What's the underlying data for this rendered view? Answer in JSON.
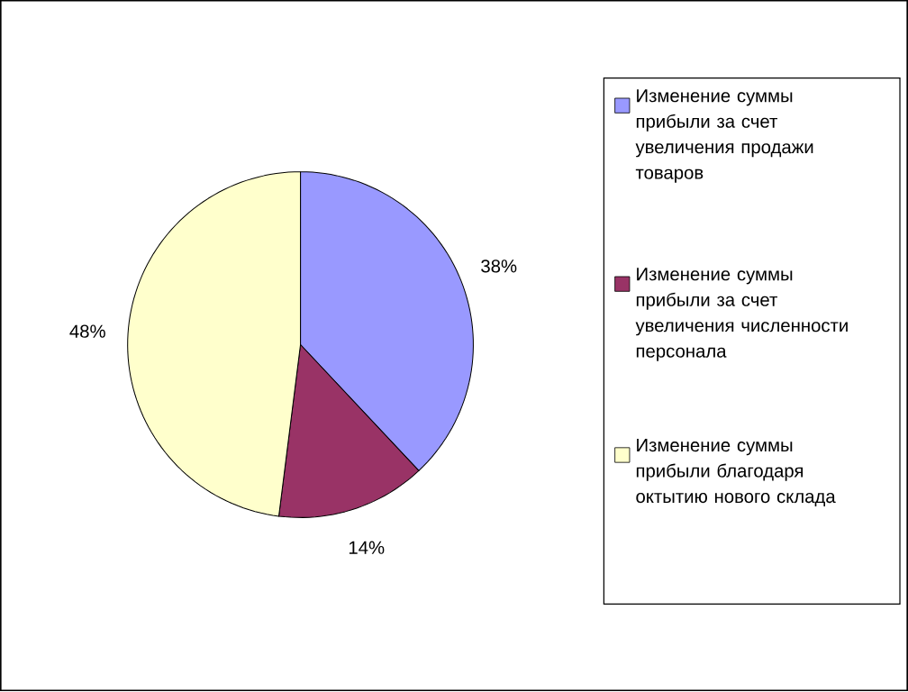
{
  "chart_data": {
    "type": "pie",
    "categories": [
      "Изменение суммы прибыли за счет увеличения продажи товаров",
      "Изменение суммы прибыли за счет увеличения численности персонала",
      "Изменение суммы прибыли благодаря октытию нового склада"
    ],
    "values": [
      38,
      14,
      48
    ],
    "value_labels": [
      "38%",
      "14%",
      "48%"
    ],
    "colors": [
      "#9999ff",
      "#993366",
      "#ffffcc"
    ],
    "legend": "right"
  }
}
